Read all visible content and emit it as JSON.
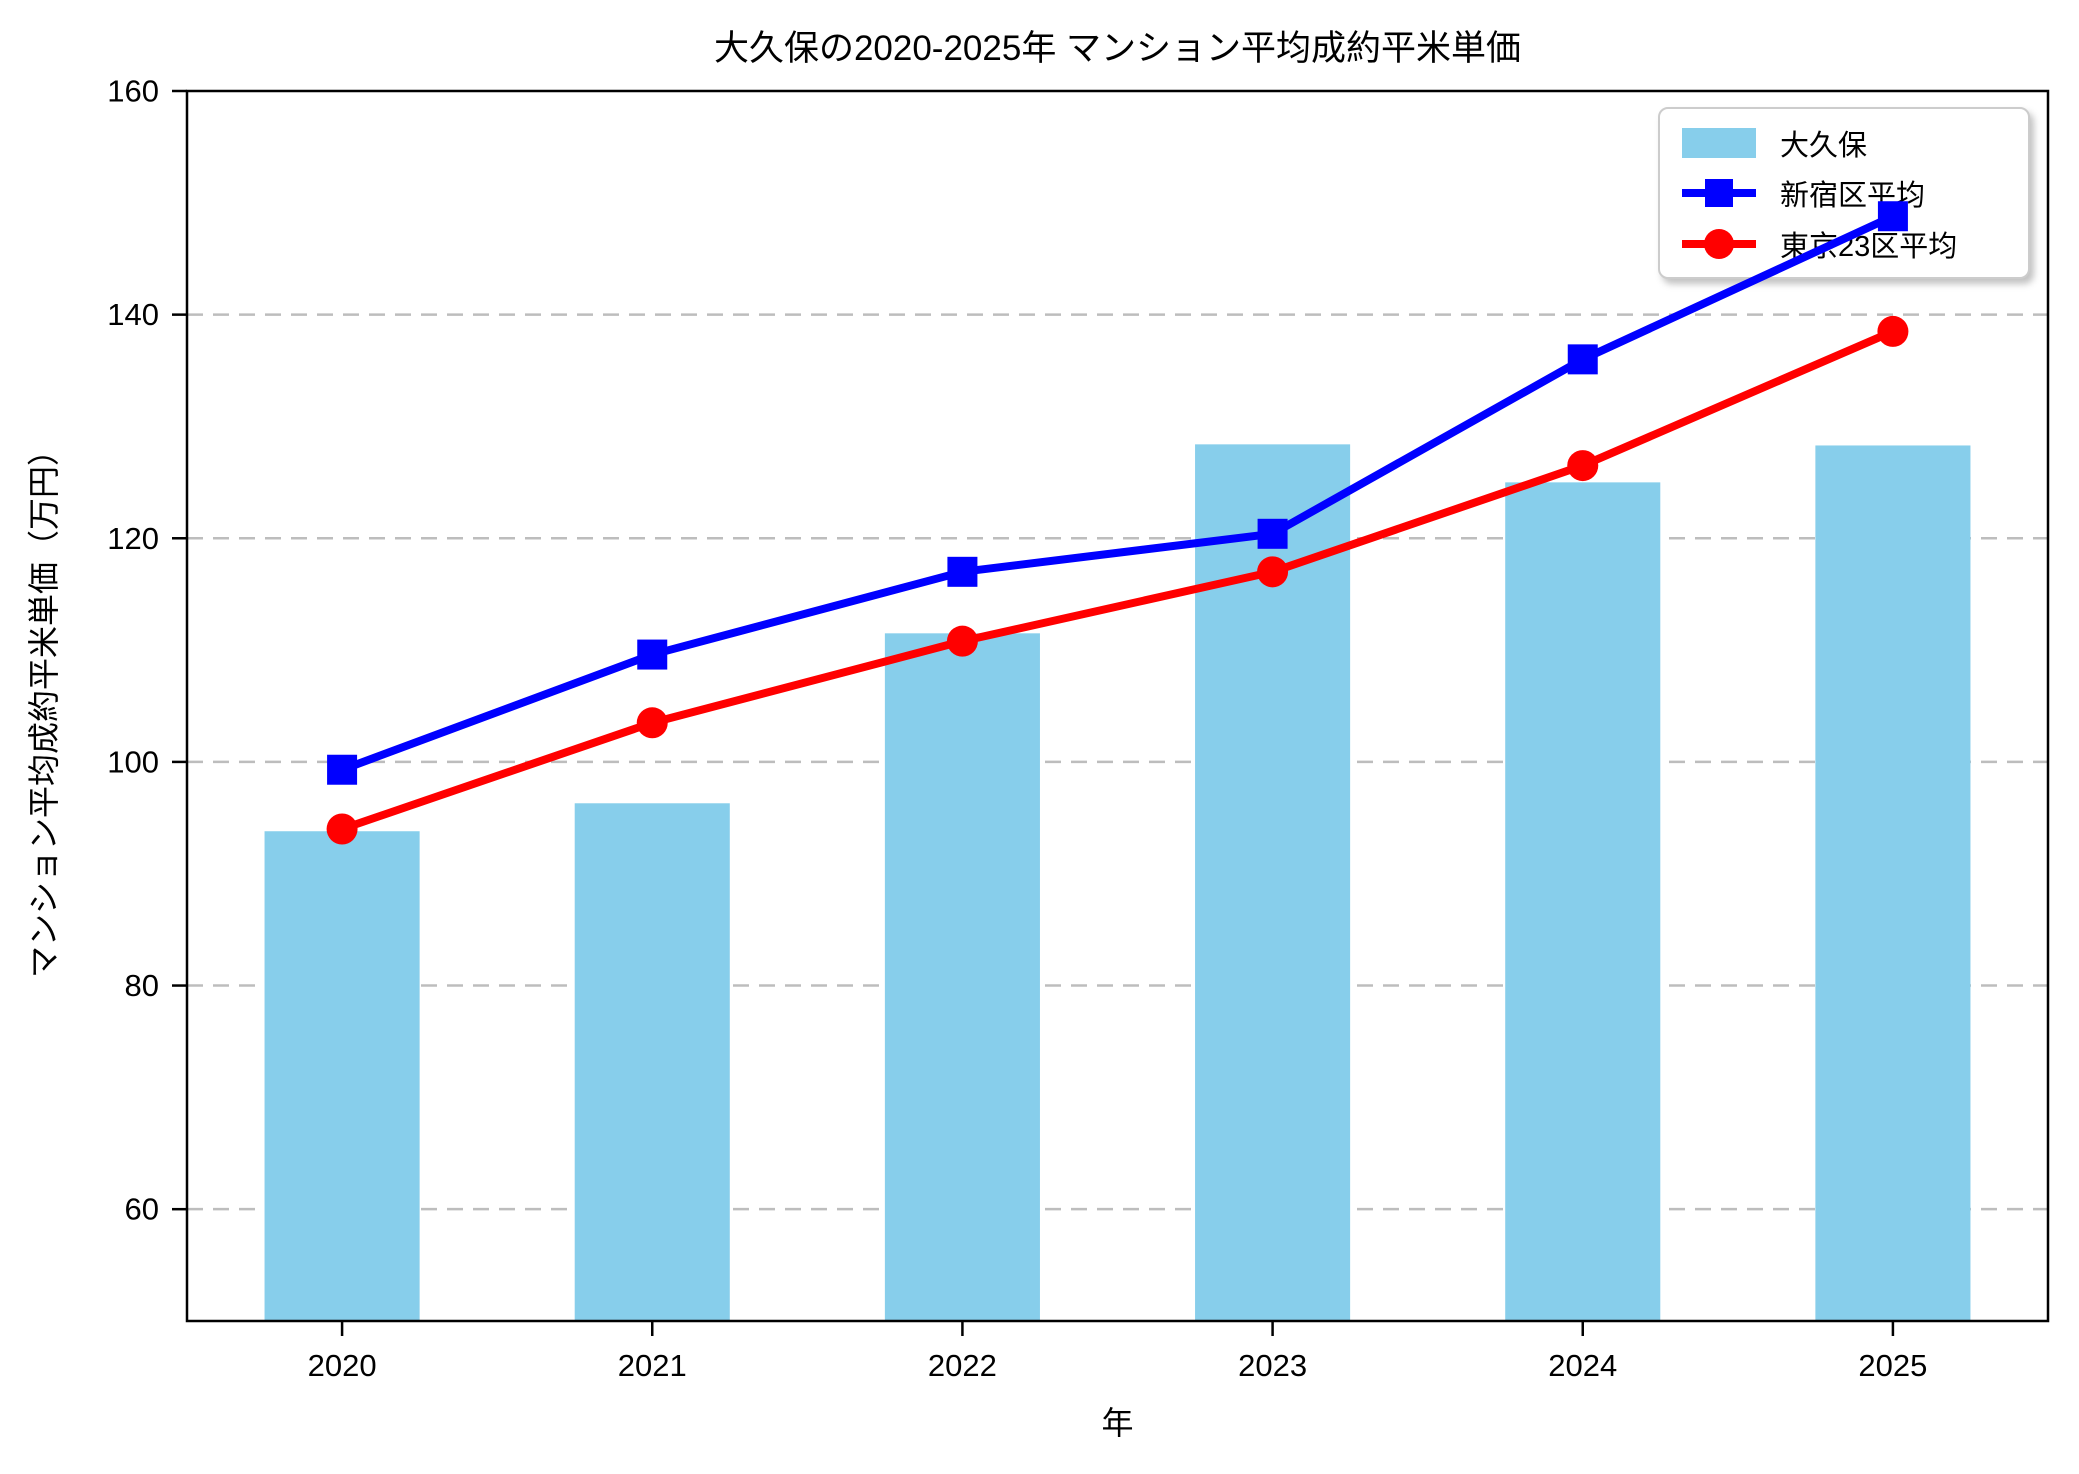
{
  "chart_data": {
    "type": "bar+line",
    "title": "大久保の2020-2025年 マンション平均成約平米単価",
    "xlabel": "年",
    "ylabel": "マンション平均成約平米単価（万円）",
    "categories": [
      "2020",
      "2021",
      "2022",
      "2023",
      "2024",
      "2025"
    ],
    "bar_series": {
      "name": "大久保",
      "values": [
        93.8,
        96.3,
        111.5,
        128.4,
        125.0,
        128.3
      ],
      "color": "#87ceeb"
    },
    "line_series": [
      {
        "name": "新宿区平均",
        "values": [
          99.3,
          109.6,
          117.0,
          120.4,
          136.0,
          148.8
        ],
        "color": "#0000ff",
        "marker": "square"
      },
      {
        "name": "東京23区平均",
        "values": [
          94.0,
          103.5,
          110.8,
          117.0,
          126.5,
          138.5
        ],
        "color": "#ff0000",
        "marker": "circle"
      }
    ],
    "ylim": [
      50,
      160
    ],
    "yticks": [
      60,
      80,
      100,
      120,
      140,
      160
    ],
    "grid": "dashed-horizontal",
    "grid_color": "#bdbdbd",
    "spine_color": "#000000",
    "legend_position": "upper-right"
  }
}
